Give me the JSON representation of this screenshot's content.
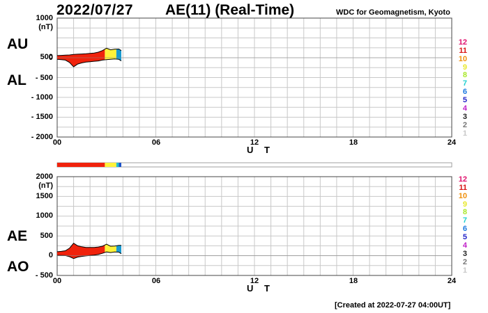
{
  "header": {
    "date": "2022/07/27",
    "title": "AE(11) (Real-Time)",
    "institution": "WDC for Geomagnetism, Kyoto",
    "created": "[Created at 2022-07-27 04:00UT]"
  },
  "panel_labels": {
    "au": "AU",
    "al": "AL",
    "ae": "AE",
    "ao": "AO"
  },
  "legend": {
    "items": [
      {
        "label": "12",
        "color": "#e0126d"
      },
      {
        "label": "11",
        "color": "#d81414"
      },
      {
        "label": "10",
        "color": "#f0900c"
      },
      {
        "label": "9",
        "color": "#e8e82a"
      },
      {
        "label": "8",
        "color": "#a8e828"
      },
      {
        "label": "7",
        "color": "#20d0d0"
      },
      {
        "label": "6",
        "color": "#1a78e0"
      },
      {
        "label": "5",
        "color": "#2424c8"
      },
      {
        "label": "4",
        "color": "#c020c8"
      },
      {
        "label": "3",
        "color": "#222222"
      },
      {
        "label": "2",
        "color": "#777777"
      },
      {
        "label": "1",
        "color": "#c8c8c8"
      }
    ]
  },
  "station_bar": [
    {
      "from": 0,
      "to": 2.9,
      "color": "#f0220c"
    },
    {
      "from": 2.9,
      "to": 3.6,
      "color": "#fff23a"
    },
    {
      "from": 3.6,
      "to": 3.75,
      "color": "#20c0d0"
    },
    {
      "from": 3.75,
      "to": 3.9,
      "color": "#1a50c8"
    }
  ],
  "chart_data": [
    {
      "type": "area",
      "panel": "AU/AL",
      "xlabel": "U T",
      "ylabel": "(nT)",
      "xlim": [
        0,
        24
      ],
      "ylim": [
        -2000,
        1000
      ],
      "xticks": [
        "00",
        "06",
        "12",
        "18",
        "24"
      ],
      "yticks": [
        "1000",
        "500",
        "0",
        "- 500",
        "- 1000",
        "- 1500",
        "- 2000"
      ],
      "series": [
        {
          "name": "AU",
          "x": [
            0,
            0.25,
            0.5,
            0.75,
            1.0,
            1.25,
            1.5,
            1.75,
            2.0,
            2.25,
            2.5,
            2.75,
            3.0,
            3.25,
            3.5,
            3.75,
            3.9
          ],
          "values": [
            55,
            60,
            65,
            70,
            85,
            90,
            95,
            100,
            110,
            120,
            140,
            180,
            240,
            200,
            215,
            220,
            180
          ]
        },
        {
          "name": "AL",
          "x": [
            0,
            0.25,
            0.5,
            0.75,
            1.0,
            1.25,
            1.5,
            1.75,
            2.0,
            2.25,
            2.5,
            2.75,
            3.0,
            3.25,
            3.5,
            3.75,
            3.9
          ],
          "values": [
            -40,
            -50,
            -60,
            -120,
            -230,
            -160,
            -130,
            -110,
            -100,
            -90,
            -80,
            -60,
            -50,
            -40,
            -30,
            -40,
            -80
          ]
        }
      ],
      "color_segments": [
        {
          "from": 0,
          "to": 2.9,
          "color": "#f0220c"
        },
        {
          "from": 2.9,
          "to": 3.6,
          "color": "#fff23a"
        },
        {
          "from": 3.6,
          "to": 3.9,
          "color": "#1a9ad0"
        }
      ]
    },
    {
      "type": "area",
      "panel": "AE/AO",
      "xlabel": "U T",
      "ylabel": "(nT)",
      "xlim": [
        0,
        24
      ],
      "ylim": [
        -500,
        2000
      ],
      "xticks": [
        "00",
        "06",
        "12",
        "18",
        "24"
      ],
      "yticks": [
        "2000",
        "1500",
        "1000",
        "500",
        "0",
        "- 500"
      ],
      "series": [
        {
          "name": "AE",
          "x": [
            0,
            0.25,
            0.5,
            0.75,
            1.0,
            1.25,
            1.5,
            1.75,
            2.0,
            2.25,
            2.5,
            2.75,
            3.0,
            3.25,
            3.5,
            3.75,
            3.9
          ],
          "values": [
            100,
            110,
            125,
            190,
            315,
            250,
            225,
            210,
            210,
            210,
            220,
            240,
            290,
            240,
            245,
            260,
            260
          ]
        },
        {
          "name": "AO",
          "x": [
            0,
            0.25,
            0.5,
            0.75,
            1.0,
            1.25,
            1.5,
            1.75,
            2.0,
            2.25,
            2.5,
            2.75,
            3.0,
            3.25,
            3.5,
            3.75,
            3.9
          ],
          "values": [
            8,
            5,
            3,
            -25,
            -73,
            -35,
            -18,
            -5,
            5,
            15,
            30,
            60,
            95,
            80,
            93,
            90,
            50
          ]
        }
      ],
      "color_segments": [
        {
          "from": 0,
          "to": 2.9,
          "color": "#f0220c"
        },
        {
          "from": 2.9,
          "to": 3.6,
          "color": "#fff23a"
        },
        {
          "from": 3.6,
          "to": 3.9,
          "color": "#1a9ad0"
        }
      ]
    }
  ]
}
